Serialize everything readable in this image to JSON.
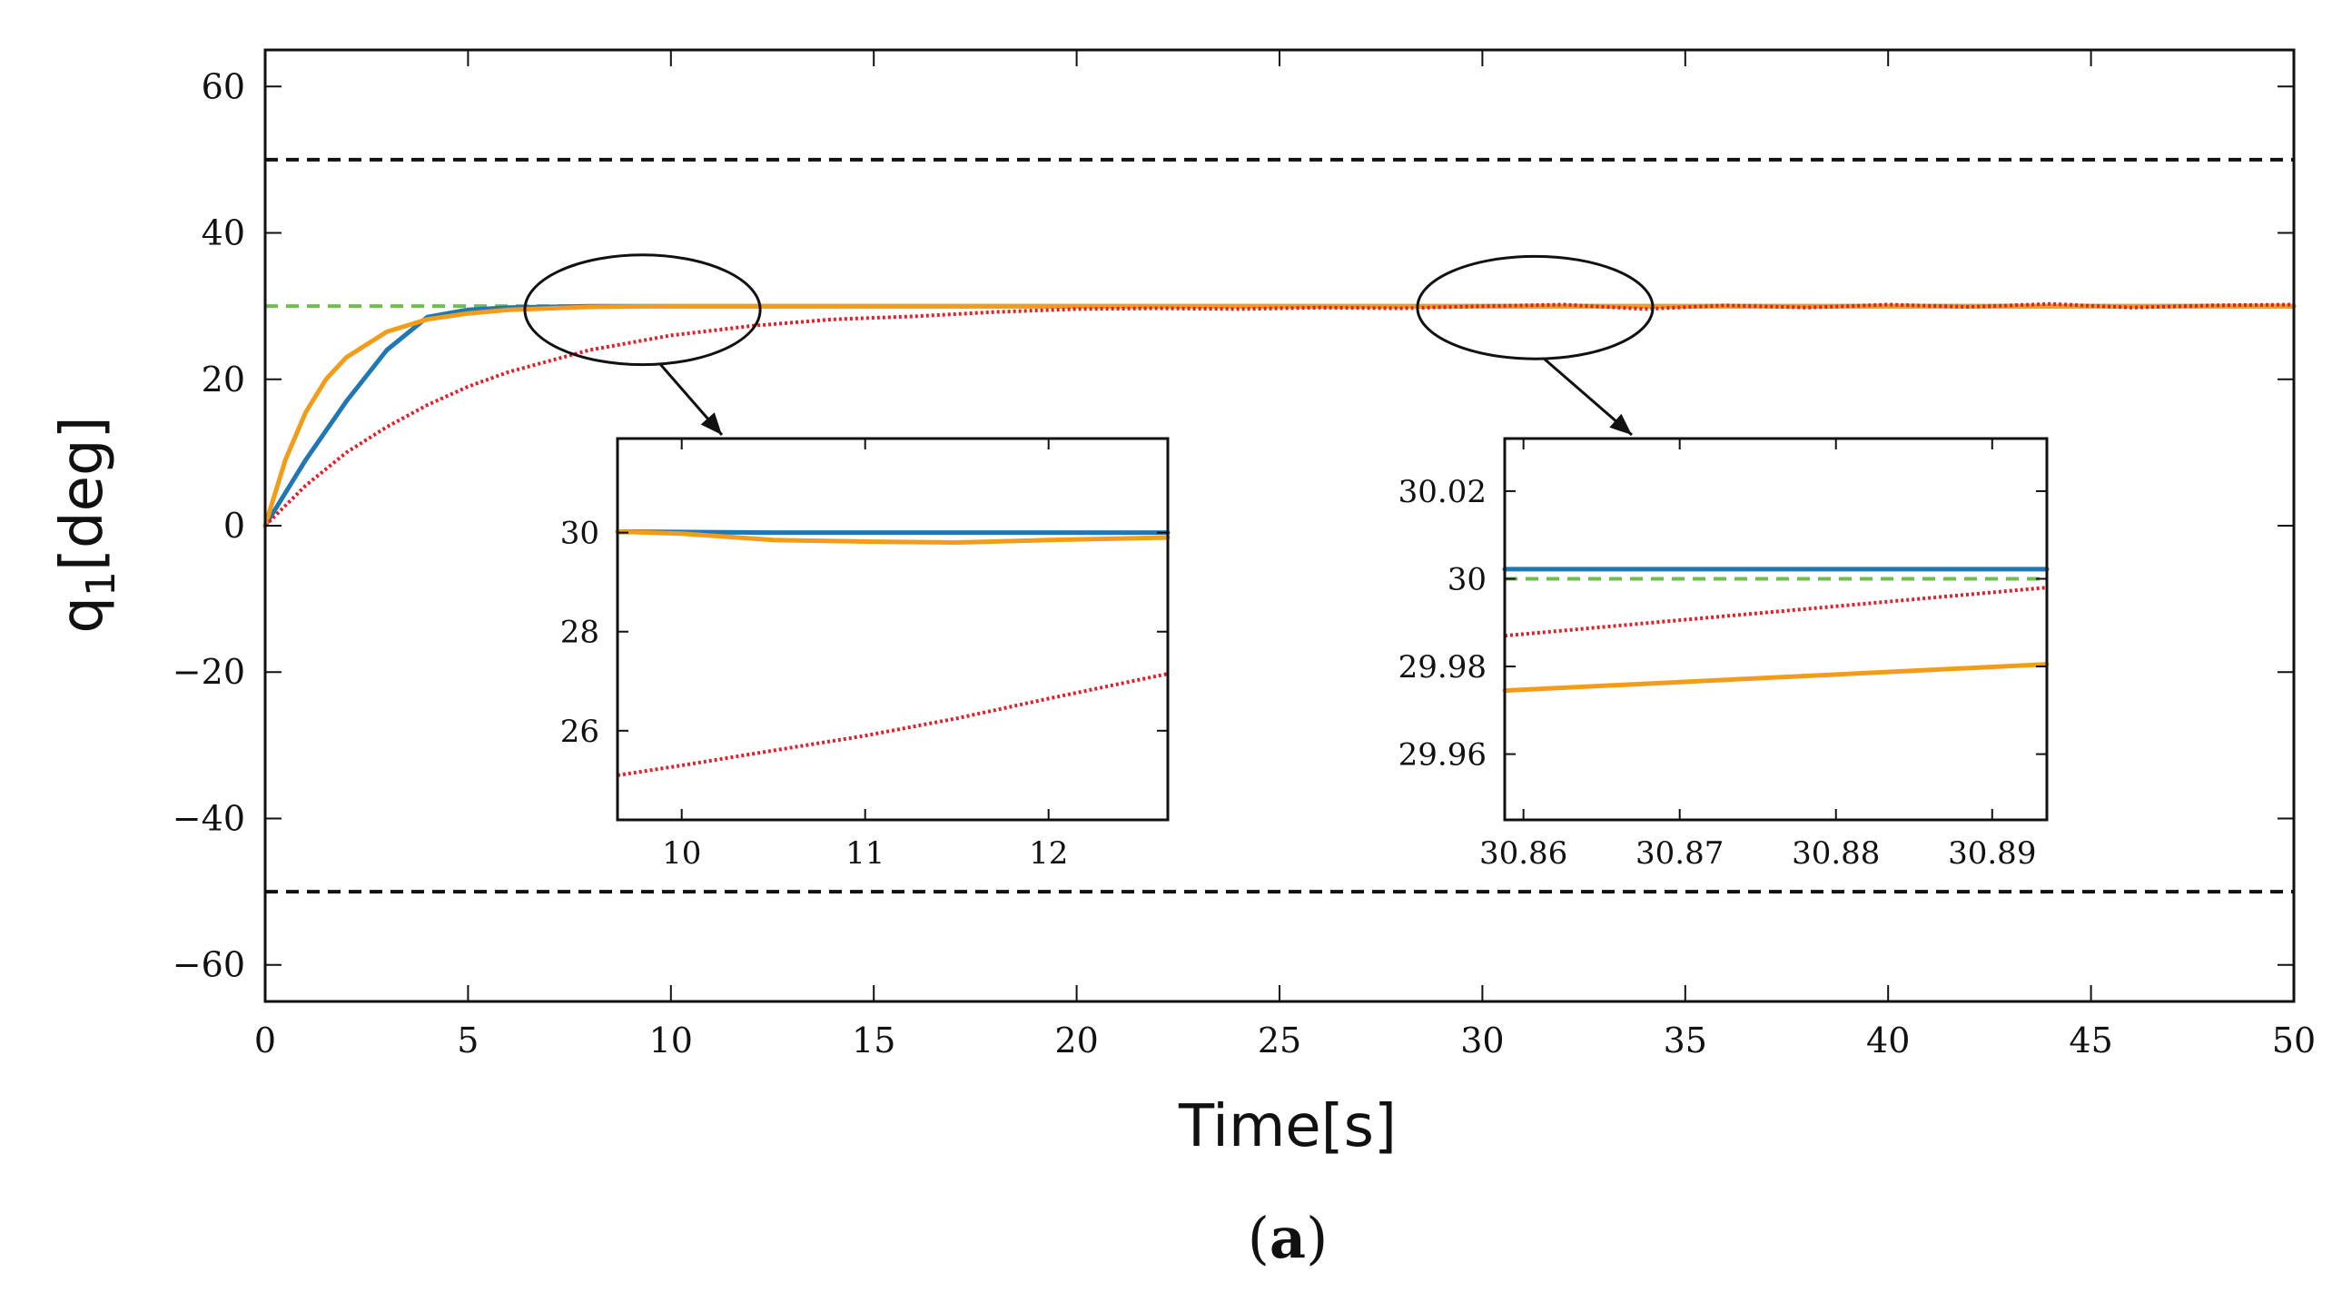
{
  "chart_data": {
    "type": "line",
    "title": "",
    "xlabel": "Time[s]",
    "ylabel_main": "q",
    "ylabel_sub": "1",
    "ylabel_unit": "[deg]",
    "caption_open": "(",
    "caption_letter": "a",
    "caption_close": ")",
    "xlim": [
      0,
      50
    ],
    "ylim": [
      -65,
      65
    ],
    "xticks": [
      0,
      5,
      10,
      15,
      20,
      25,
      30,
      35,
      40,
      45,
      50
    ],
    "xtick_labels": [
      "0",
      "5",
      "10",
      "15",
      "20",
      "25",
      "30",
      "35",
      "40",
      "45",
      "50"
    ],
    "yticks": [
      60,
      40,
      20,
      0,
      -20,
      -40,
      -60
    ],
    "ytick_labels": [
      "60",
      "40",
      "20",
      "0",
      "−20",
      "−40",
      "−60"
    ],
    "colors": {
      "blue": "#1f77b4",
      "orange": "#f39c1a",
      "red": "#e0202a",
      "green": "#6cc04a",
      "black": "#111111"
    },
    "reference_lines": [
      {
        "name": "upper-bound",
        "y": 50,
        "color": "#111111",
        "style": "dashed"
      },
      {
        "name": "lower-bound",
        "y": -50,
        "color": "#111111",
        "style": "dashed"
      },
      {
        "name": "reference",
        "y": 30,
        "color": "#6cc04a",
        "style": "dashed"
      }
    ],
    "series": [
      {
        "name": "blue",
        "color": "#1f77b4",
        "style": "solid",
        "x": [
          0,
          1,
          2,
          3,
          4,
          5,
          6,
          8,
          10,
          15,
          20,
          25,
          30,
          35,
          40,
          45,
          50
        ],
        "y": [
          0,
          9,
          17,
          24,
          28.5,
          29.5,
          29.8,
          30,
          30,
          30,
          30,
          30,
          30,
          30,
          30,
          30,
          30
        ]
      },
      {
        "name": "orange",
        "color": "#f39c1a",
        "style": "solid",
        "x": [
          0,
          0.5,
          1,
          1.5,
          2,
          3,
          4,
          5,
          6,
          8,
          10,
          15,
          20,
          25,
          30,
          35,
          40,
          45,
          50
        ],
        "y": [
          0,
          9,
          15.5,
          20,
          23,
          26.5,
          28.2,
          29,
          29.5,
          29.9,
          30,
          30,
          30,
          30,
          30,
          30,
          30,
          30,
          30
        ]
      },
      {
        "name": "red",
        "color": "#e0202a",
        "style": "dotted",
        "x": [
          0,
          1,
          2,
          3,
          4,
          5,
          6,
          8,
          10,
          12,
          14,
          16,
          18,
          20,
          22,
          24,
          26,
          28,
          30,
          32,
          34,
          36,
          38,
          40,
          42,
          44,
          46,
          48,
          50
        ],
        "y": [
          0,
          5.5,
          10,
          13.5,
          16.5,
          19,
          21,
          24,
          26,
          27.3,
          28.2,
          28.6,
          29.2,
          29.6,
          29.7,
          29.6,
          29.8,
          29.7,
          30,
          30.2,
          29.6,
          30.1,
          29.8,
          30.2,
          29.9,
          30.3,
          29.8,
          30.1,
          30.2
        ]
      }
    ],
    "zoom_ellipses": [
      {
        "name": "zoom-ellipse-1",
        "x_center": 9.3,
        "y_center": 29.5,
        "x_radius": 2.9,
        "y_radius": 7.5
      },
      {
        "name": "zoom-ellipse-2",
        "x_center": 31.3,
        "y_center": 29.8,
        "x_radius": 2.9,
        "y_radius": 7
      }
    ],
    "insets": [
      {
        "name": "inset-1",
        "xlim": [
          9.65,
          12.65
        ],
        "ylim": [
          24.2,
          31.9
        ],
        "xticks": [
          10,
          11,
          12
        ],
        "xtick_labels": [
          "10",
          "11",
          "12"
        ],
        "yticks": [
          30,
          28,
          26
        ],
        "ytick_labels": [
          "30",
          "28",
          "26"
        ],
        "reference_y": 30,
        "series": [
          {
            "name": "blue",
            "color": "#1f77b4",
            "style": "solid",
            "x": [
              9.65,
              10.5,
              11.5,
              12.65
            ],
            "y": [
              30.02,
              30.0,
              30.0,
              30.0
            ]
          },
          {
            "name": "orange",
            "color": "#f39c1a",
            "style": "solid",
            "x": [
              9.65,
              10,
              10.5,
              11,
              11.5,
              12,
              12.65
            ],
            "y": [
              30.02,
              29.98,
              29.85,
              29.82,
              29.8,
              29.85,
              29.9
            ]
          },
          {
            "name": "red",
            "color": "#e0202a",
            "style": "dotted",
            "x": [
              9.65,
              10,
              10.5,
              11,
              11.5,
              12,
              12.65
            ],
            "y": [
              25.1,
              25.3,
              25.6,
              25.9,
              26.25,
              26.65,
              27.15
            ]
          }
        ]
      },
      {
        "name": "inset-2",
        "xlim": [
          30.8588,
          30.8935
        ],
        "ylim": [
          29.945,
          30.032
        ],
        "xticks": [
          30.86,
          30.87,
          30.88,
          30.89
        ],
        "xtick_labels": [
          "30.86",
          "30.87",
          "30.88",
          "30.89"
        ],
        "yticks": [
          30.02,
          30,
          29.98,
          29.96
        ],
        "ytick_labels": [
          "30.02",
          "30",
          "29.98",
          "29.96"
        ],
        "reference_y": 30,
        "series": [
          {
            "name": "blue",
            "color": "#1f77b4",
            "style": "solid",
            "x": [
              30.8588,
              30.8935
            ],
            "y": [
              30.0022,
              30.0022
            ]
          },
          {
            "name": "orange",
            "color": "#f39c1a",
            "style": "solid",
            "x": [
              30.8588,
              30.8935
            ],
            "y": [
              29.9745,
              29.9805
            ]
          },
          {
            "name": "red",
            "color": "#e0202a",
            "style": "dotted",
            "x": [
              30.8588,
              30.8935
            ],
            "y": [
              29.987,
              29.998
            ]
          }
        ]
      }
    ]
  }
}
